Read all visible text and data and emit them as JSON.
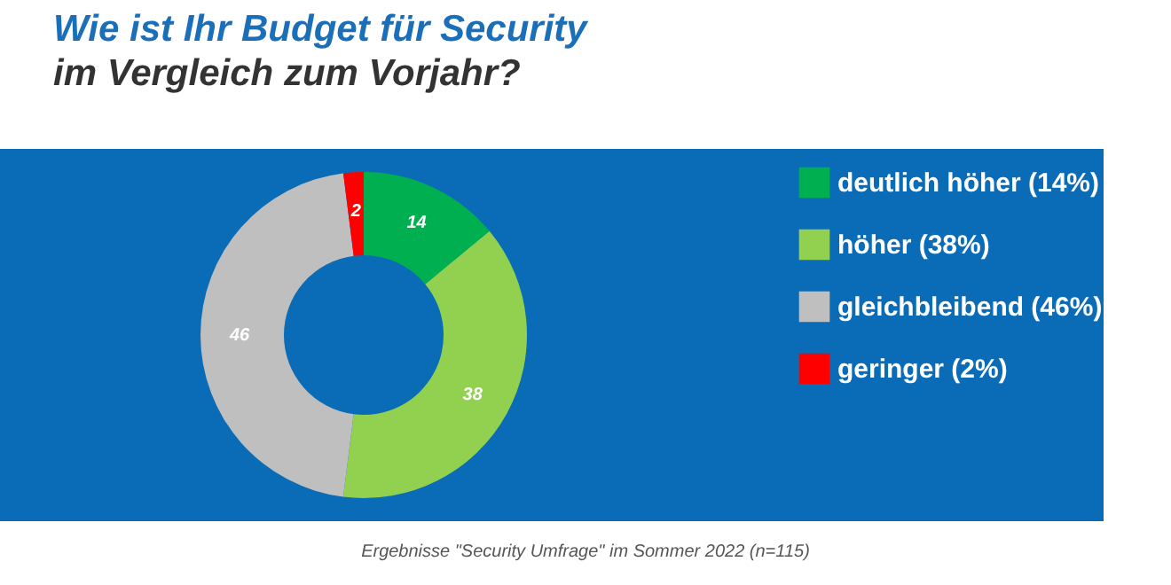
{
  "chart_data": {
    "type": "donut",
    "title": "Wie ist Ihr Budget für Security\nim Vergleich zum Vorjahr?",
    "categories": [
      "deutlich höher (14%)",
      "höher (38%)",
      "gleichbleibend (46%)",
      "geringer (2%)"
    ],
    "values": [
      14,
      38,
      46,
      2
    ],
    "colors": [
      "#00b050",
      "#92d050",
      "#bfbfbf",
      "#ff0000"
    ],
    "data_labels": true,
    "legend": "right",
    "annotations": [
      "Ergebnisse \"Security Umfrage\" im Sommer 2022 (n=115)"
    ]
  }
}
